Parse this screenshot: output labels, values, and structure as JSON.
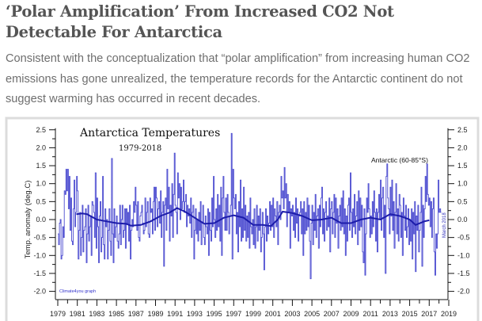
{
  "article": {
    "title": "‘Polar Amplification’ From Increased CO2 Not Detectable For Antarctica",
    "lead": "Consistent with the conceptualization that “polar amplification” from increasing human CO2 emissions has gone unrealized, the temperature records for the Antarctic continent do not suggest warming has occurred in recent decades."
  },
  "chart_data": {
    "type": "line",
    "title": "Antarctica Temperatures",
    "subtitle": "1979-2018",
    "region_label": "Antarctic (60-85°S)",
    "date_label": "March 2018",
    "credit": "Climate4you graph",
    "xlabel": "",
    "ylabel": "Temp. anomaly (deg.C)",
    "xlim": [
      1979,
      2019
    ],
    "ylim": [
      -2.0,
      2.5
    ],
    "x_ticks": [
      "1979",
      "1981",
      "1983",
      "1985",
      "1987",
      "1989",
      "1991",
      "1993",
      "1995",
      "1997",
      "1999",
      "2001",
      "2003",
      "2005",
      "2007",
      "2009",
      "2011",
      "2013",
      "2015",
      "2017",
      "2019"
    ],
    "y_ticks": [
      "2.5",
      "2.0",
      "1.5",
      "1.0",
      "0.5",
      "0.0",
      "-0.5",
      "-1.0",
      "-1.5",
      "-2.0"
    ],
    "grid": false,
    "colors": {
      "monthly": "#4a4ad0",
      "running_mean": "#1c1caa",
      "frame": "#dcdcdc"
    },
    "series": [
      {
        "id": "monthly",
        "start": 1979.0,
        "step_months": 1,
        "values": [
          -0.4,
          -0.7,
          -0.1,
          0.0,
          -1.1,
          -1.0,
          -0.2,
          -0.5,
          0.8,
          0.7,
          1.4,
          0.8,
          1.4,
          0.3,
          1.2,
          -0.3,
          0.6,
          -0.6,
          -0.7,
          0.3,
          1.1,
          -0.2,
          0.2,
          1.2,
          0.8,
          -1.1,
          -0.3,
          0.2,
          -1.0,
          -0.5,
          0.4,
          -0.9,
          -0.3,
          -0.2,
          0.3,
          -1.2,
          -0.4,
          0.4,
          -0.6,
          -0.2,
          0.1,
          -1.0,
          0.5,
          0.4,
          0.2,
          -0.5,
          1.3,
          -0.8,
          0.6,
          -0.2,
          -1.2,
          0.1,
          0.5,
          -0.9,
          -0.5,
          1.2,
          -0.7,
          -1.1,
          0.3,
          -0.2,
          0.0,
          -1.1,
          -0.3,
          0.3,
          -0.6,
          -1.0,
          1.7,
          -0.4,
          -1.2,
          0.3,
          -0.5,
          -0.2,
          0.1,
          -0.6,
          -0.8,
          -0.4,
          0.4,
          -0.7,
          0.0,
          0.4,
          -0.5,
          -0.3,
          0.3,
          -0.8,
          0.3,
          -0.1,
          0.2,
          -0.6,
          0.4,
          -1.1,
          -0.3,
          0.0,
          -0.2,
          0.5,
          0.2,
          0.9,
          0.4,
          -0.3,
          0.5,
          -0.5,
          -0.6,
          0.1,
          0.2,
          0.4,
          -0.1,
          -0.4,
          -0.3,
          0.6,
          -0.2,
          0.2,
          0.5,
          -0.4,
          -0.5,
          0.6,
          0.2,
          0.3,
          -0.4,
          0.5,
          0.9,
          -0.3,
          0.9,
          0.6,
          -0.2,
          0.3,
          0.5,
          -0.1,
          0.8,
          -0.5,
          0.2,
          0.5,
          -1.3,
          0.4,
          0.6,
          -0.3,
          1.4,
          0.3,
          0.9,
          -0.6,
          0.4,
          0.1,
          1.0,
          -0.5,
          0.7,
          1.85,
          0.4,
          0.2,
          -0.4,
          1.3,
          0.6,
          1.0,
          0.0,
          0.9,
          0.3,
          0.5,
          1.1,
          0.2,
          0.5,
          0.7,
          -0.2,
          0.4,
          0.1,
          0.3,
          -0.1,
          0.6,
          -0.5,
          0.2,
          0.4,
          -1.1,
          -0.3,
          0.3,
          -0.4,
          0.0,
          -0.6,
          0.2,
          -0.3,
          0.5,
          -0.7,
          -0.1,
          0.4,
          -0.5,
          -0.7,
          0.1,
          -0.2,
          -0.4,
          0.3,
          -1.0,
          0.2,
          -0.3,
          -0.6,
          0.6,
          -0.2,
          1.2,
          0.0,
          -0.5,
          0.3,
          -0.3,
          0.7,
          -0.2,
          0.4,
          -0.6,
          0.9,
          -1.0,
          0.6,
          1.2,
          0.2,
          -0.3,
          0.6,
          -0.3,
          0.7,
          0.2,
          -0.4,
          0.1,
          0.4,
          2.4,
          -1.1,
          1.4,
          0.6,
          0.3,
          0.7,
          -0.4,
          0.2,
          -0.9,
          0.5,
          -0.2,
          1.1,
          -0.6,
          0.3,
          -0.5,
          0.9,
          -0.3,
          0.4,
          -0.6,
          0.1,
          -0.5,
          0.2,
          -0.8,
          0.6,
          -0.2,
          -0.4,
          0.0,
          -0.7,
          0.3,
          -0.8,
          -0.2,
          0.4,
          -0.6,
          0.1,
          -0.3,
          0.3,
          -0.9,
          -0.5,
          0.2,
          -0.4,
          -1.4,
          -0.2,
          0.3,
          -0.6,
          0.1,
          -0.4,
          -0.1,
          0.5,
          -0.3,
          0.4,
          -0.2,
          0.6,
          -0.5,
          0.3,
          0.1,
          -0.2,
          0.5,
          -0.7,
          0.2,
          0.4,
          0.0,
          1.2,
          0.6,
          0.8,
          0.3,
          1.45,
          0.6,
          1.0,
          -0.2,
          0.7,
          0.2,
          0.5,
          -0.8,
          0.3,
          0.1,
          0.4,
          -0.3,
          0.2,
          -0.5,
          0.6,
          -0.1,
          0.3,
          -0.6,
          0.1,
          0.2,
          0.5,
          -0.4,
          0.3,
          -1.0,
          0.5,
          -0.4,
          0.2,
          -0.3,
          0.6,
          -0.2,
          0.4,
          -0.6,
          -1.65,
          -0.1,
          0.4,
          -0.7,
          0.2,
          -0.3,
          0.7,
          -0.5,
          0.1,
          0.3,
          -0.8,
          0.4,
          -0.2,
          0.6,
          0.9,
          -0.4,
          0.3,
          -0.6,
          0.2,
          0.5,
          -0.3,
          0.1,
          -0.2,
          0.6,
          -0.9,
          0.3,
          0.5,
          -0.4,
          0.2,
          0.7,
          -0.5,
          0.6,
          -0.1,
          0.3,
          -0.8,
          0.1,
          0.4,
          -0.3,
          0.6,
          -0.2,
          0.8,
          -0.4,
          0.3,
          -1.0,
          0.1,
          -0.6,
          0.4,
          0.6,
          -0.3,
          1.3,
          0.2,
          -0.5,
          0.3,
          -0.2,
          0.7,
          -0.4,
          0.1,
          0.5,
          -0.7,
          0.8,
          -0.3,
          0.6,
          -0.2,
          0.4,
          -0.9,
          -1.2,
          0.3,
          -1.55,
          -0.4,
          0.6,
          0.2,
          1.0,
          0.3,
          -0.5,
          0.1,
          -0.4,
          0.5,
          -0.2,
          0.8,
          0.2,
          -0.6,
          0.3,
          -0.9,
          0.2,
          0.7,
          0.0,
          1.1,
          -0.3,
          0.6,
          0.9,
          -0.5,
          0.4,
          -1.5,
          1.2,
          1.55,
          0.6,
          0.3,
          -0.4,
          0.9,
          0.1,
          1.1,
          -0.3,
          0.5,
          -0.8,
          0.2,
          1.0,
          -0.4,
          0.3,
          -0.6,
          0.7,
          0.4,
          -0.5,
          0.2,
          -1.0,
          0.6,
          0.1,
          -0.3,
          0.4,
          -0.5,
          -0.2,
          0.3,
          -0.7,
          0.0,
          -0.6,
          0.3,
          -1.1,
          0.2,
          -0.4,
          0.5,
          -1.45,
          0.1,
          -0.3,
          0.4,
          -0.9,
          -0.3,
          0.2,
          0.9,
          -1.3,
          0.4,
          -0.5,
          0.3,
          1.2,
          0.5,
          1.55,
          0.7,
          0.4,
          0.6,
          -0.2,
          0.5,
          -0.5,
          0.3,
          0.6,
          -0.9,
          -1.55,
          -0.4,
          -0.8,
          -0.4,
          1.1,
          0.2,
          0.3,
          0.2
        ]
      },
      {
        "id": "running_mean",
        "x": [
          1980.9,
          1981.5,
          1982,
          1983,
          1984,
          1985,
          1986,
          1986.5,
          1987.5,
          1988.5,
          1989.5,
          1990.5,
          1991.2,
          1992,
          1993,
          1994,
          1995,
          1996,
          1997,
          1998,
          1999,
          2000,
          2000.8,
          2001.5,
          2002,
          2003,
          2004,
          2005,
          2006,
          2007,
          2008,
          2009,
          2010,
          2011,
          2012,
          2013,
          2014,
          2015,
          2015.6,
          2016.5,
          2017
        ],
        "y": [
          0.15,
          0.17,
          0.15,
          0.0,
          -0.05,
          -0.1,
          -0.12,
          -0.17,
          -0.15,
          -0.05,
          0.1,
          0.2,
          0.32,
          0.22,
          0.05,
          -0.12,
          -0.1,
          0.05,
          0.12,
          0.05,
          -0.15,
          -0.15,
          -0.18,
          0.0,
          0.22,
          0.18,
          0.1,
          -0.02,
          0.0,
          0.05,
          -0.1,
          -0.1,
          0.0,
          0.05,
          0.0,
          0.15,
          0.1,
          0.0,
          -0.15,
          -0.05,
          -0.02
        ]
      }
    ]
  }
}
